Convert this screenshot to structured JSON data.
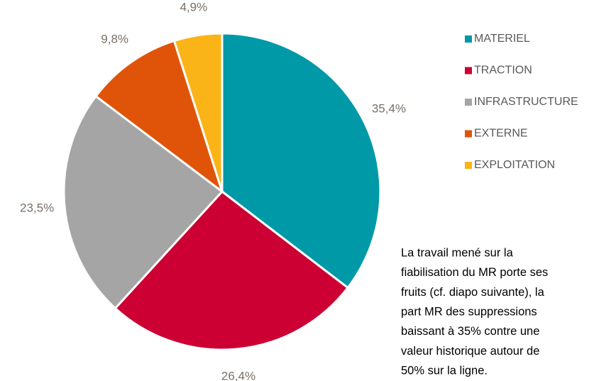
{
  "chart_data": {
    "type": "pie",
    "categories": [
      "MATERIEL",
      "TRACTION",
      "INFRASTRUCTURE",
      "EXTERNE",
      "EXPLOITATION"
    ],
    "values": [
      35.4,
      26.4,
      23.5,
      9.8,
      4.9
    ],
    "value_labels": [
      "35,4%",
      "26,4%",
      "23,5%",
      "9,8%",
      "4,9%"
    ],
    "colors": [
      "#0099a8",
      "#cc0033",
      "#a5a5a5",
      "#e0540a",
      "#fbb417"
    ],
    "legend": "right",
    "annotation": [
      "La travail mené sur la",
      "fiabilisation du MR porte ses",
      "fruits (cf. diapo suivante), la",
      "part MR des suppressions",
      "baissant à 35% contre une",
      "valeur historique autour de",
      "50% sur la ligne."
    ]
  }
}
